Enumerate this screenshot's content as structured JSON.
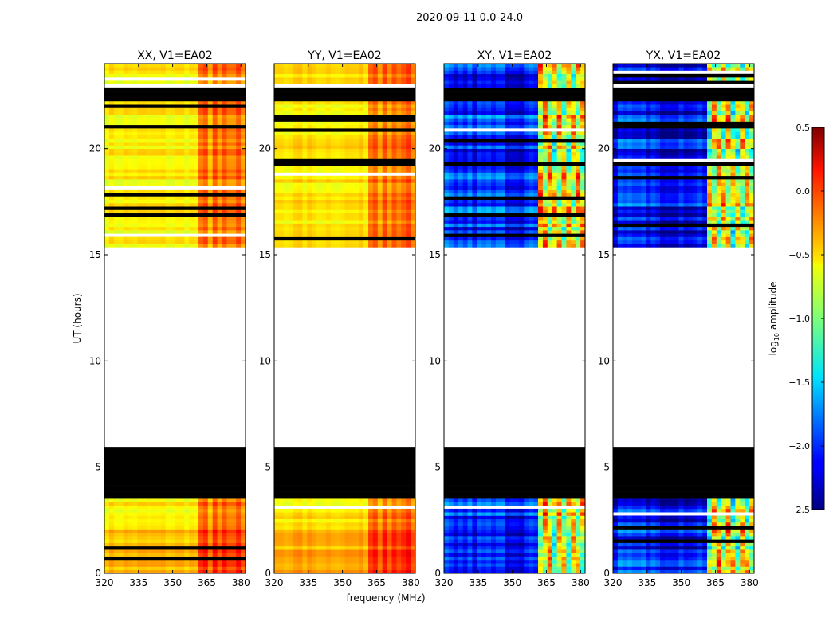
{
  "chart_data": {
    "type": "heatmap",
    "suptitle": "2020-09-11 0.0-24.0",
    "xlabel": "frequency (MHz)",
    "ylabel": "UT (hours)",
    "xlim": [
      320,
      382
    ],
    "ylim": [
      0,
      24
    ],
    "xticks": [
      320,
      335,
      350,
      365,
      380
    ],
    "yticks": [
      0,
      5,
      10,
      15,
      20
    ],
    "panels": [
      {
        "title": "XX, V1=EA02",
        "base": -0.6,
        "kind": "parallel"
      },
      {
        "title": "YY, V1=EA02",
        "base": -0.55,
        "kind": "parallel"
      },
      {
        "title": "XY, V1=EA02",
        "base": -2.0,
        "kind": "cross"
      },
      {
        "title": "YX, V1=EA02",
        "base": -2.05,
        "kind": "cross"
      }
    ],
    "bright_band_mhz": [
      361,
      381
    ],
    "flagged_hours": [
      [
        22.2,
        22.9
      ],
      [
        3.6,
        5.9
      ]
    ],
    "no_data_hours": [
      [
        5.9,
        15.4
      ]
    ],
    "colorbar": {
      "label": "log10 amplitude",
      "label_main": "log",
      "label_sub": "10",
      "label_rest": " amplitude",
      "vmin": -2.5,
      "vmax": 0.5,
      "ticks": [
        "0.5",
        "0.0",
        "−0.5",
        "−1.0",
        "−1.5",
        "−2.0",
        "−2.5"
      ],
      "tick_values": [
        0.5,
        0.0,
        -0.5,
        -1.0,
        -1.5,
        -2.0,
        -2.5
      ]
    }
  }
}
